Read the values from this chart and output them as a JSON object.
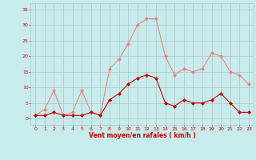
{
  "x": [
    0,
    1,
    2,
    3,
    4,
    5,
    6,
    7,
    8,
    9,
    10,
    11,
    12,
    13,
    14,
    15,
    16,
    17,
    18,
    19,
    20,
    21,
    22,
    23
  ],
  "rafales": [
    1,
    3,
    9,
    1,
    2,
    9,
    2,
    1,
    16,
    19,
    24,
    30,
    32,
    32,
    20,
    14,
    16,
    15,
    16,
    21,
    20,
    15,
    14,
    11
  ],
  "moyen": [
    1,
    1,
    2,
    1,
    1,
    1,
    2,
    1,
    6,
    8,
    11,
    13,
    14,
    13,
    5,
    4,
    6,
    5,
    5,
    6,
    8,
    5,
    2,
    2
  ],
  "rafales_color": "#f08080",
  "moyen_color": "#cc0000",
  "bg_color": "#c8ecec",
  "grid_color": "#a8c8c8",
  "xlabel": "Vent moyen/en rafales ( km/h )",
  "xlabel_color": "#cc0000",
  "ylabel_color": "#cc0000",
  "yticks": [
    0,
    5,
    10,
    15,
    20,
    25,
    30,
    35
  ],
  "xticks": [
    0,
    1,
    2,
    3,
    4,
    5,
    6,
    7,
    8,
    9,
    10,
    11,
    12,
    13,
    14,
    15,
    16,
    17,
    18,
    19,
    20,
    21,
    22,
    23
  ],
  "ylim": [
    -2,
    37
  ],
  "xlim": [
    -0.5,
    23.5
  ]
}
